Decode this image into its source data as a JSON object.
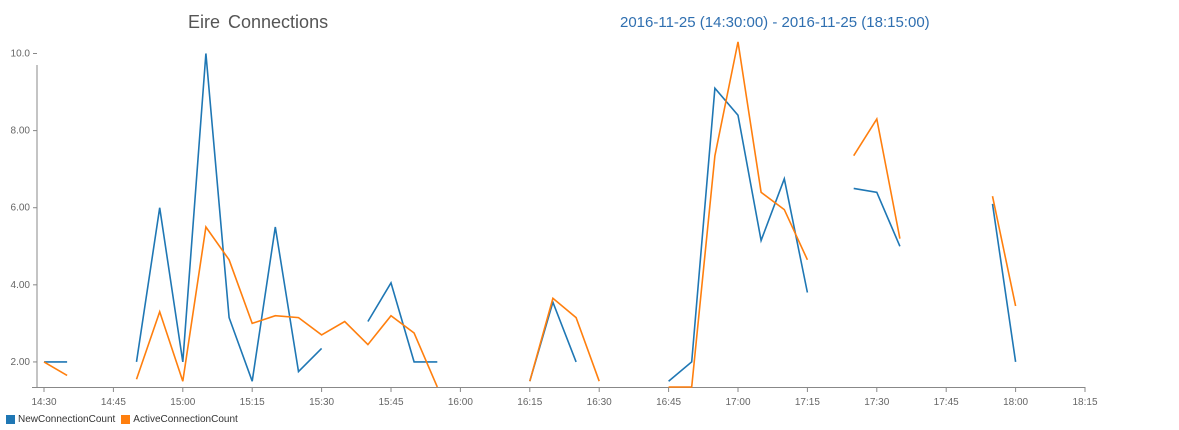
{
  "header": {
    "title": "Eire  Connections",
    "range": "2016-11-25 (14:30:00) - 2016-11-25 (18:15:00)"
  },
  "chart_data": {
    "type": "line",
    "title": "Eire  Connections",
    "subtitle": "2016-11-25 (14:30:00) - 2016-11-25 (18:15:00)",
    "x_ticks": [
      "14:30",
      "14:45",
      "15:00",
      "15:15",
      "15:30",
      "15:45",
      "16:00",
      "16:15",
      "16:30",
      "16:45",
      "17:00",
      "17:15",
      "17:30",
      "17:45",
      "18:00",
      "18:15"
    ],
    "y_ticks": [
      "2.00",
      "4.00",
      "6.00",
      "8.00",
      "10.0"
    ],
    "ylim": [
      1.35,
      10.35
    ],
    "xlim": [
      "14:30",
      "18:15"
    ],
    "legend_position": "bottom-left",
    "grid": false,
    "series": [
      {
        "name": "NewConnectionCount",
        "color": "#1f77b4",
        "points": [
          [
            "14:30",
            2.0
          ],
          [
            "14:35",
            2.0
          ],
          [
            "14:50",
            2.0
          ],
          [
            "14:55",
            6.0
          ],
          [
            "15:00",
            2.0
          ],
          [
            "15:05",
            10.0
          ],
          [
            "15:10",
            3.15
          ],
          [
            "15:15",
            1.5
          ],
          [
            "15:20",
            5.5
          ],
          [
            "15:25",
            1.75
          ],
          [
            "15:30",
            2.35
          ],
          [
            "15:40",
            3.05
          ],
          [
            "15:45",
            4.05
          ],
          [
            "15:50",
            2.0
          ],
          [
            "15:55",
            2.0
          ],
          [
            "16:15",
            1.5
          ],
          [
            "16:20",
            3.55
          ],
          [
            "16:25",
            2.0
          ],
          [
            "16:45",
            1.5
          ],
          [
            "16:50",
            2.0
          ],
          [
            "16:55",
            9.1
          ],
          [
            "17:00",
            8.4
          ],
          [
            "17:05",
            5.15
          ],
          [
            "17:10",
            6.75
          ],
          [
            "17:15",
            3.8
          ],
          [
            "17:25",
            6.5
          ],
          [
            "17:30",
            6.4
          ],
          [
            "17:35",
            5.0
          ],
          [
            "17:55",
            6.1
          ],
          [
            "18:00",
            2.0
          ]
        ],
        "segments": [
          [
            0,
            2
          ],
          [
            2,
            11
          ],
          [
            11,
            15
          ],
          [
            15,
            18
          ],
          [
            18,
            25
          ],
          [
            25,
            28
          ],
          [
            28,
            30
          ]
        ]
      },
      {
        "name": "ActiveConnectionCount",
        "color": "#ff7f0e",
        "points": [
          [
            "14:30",
            2.0
          ],
          [
            "14:35",
            1.65
          ],
          [
            "14:50",
            1.55
          ],
          [
            "14:55",
            3.3
          ],
          [
            "15:00",
            1.5
          ],
          [
            "15:05",
            5.5
          ],
          [
            "15:10",
            4.65
          ],
          [
            "15:15",
            3.0
          ],
          [
            "15:20",
            3.2
          ],
          [
            "15:25",
            3.15
          ],
          [
            "15:30",
            2.7
          ],
          [
            "15:35",
            3.05
          ],
          [
            "15:40",
            2.45
          ],
          [
            "15:45",
            3.2
          ],
          [
            "15:50",
            2.75
          ],
          [
            "15:55",
            1.35
          ],
          [
            "16:15",
            1.5
          ],
          [
            "16:20",
            3.65
          ],
          [
            "16:25",
            3.15
          ],
          [
            "16:30",
            1.5
          ],
          [
            "16:45",
            1.35
          ],
          [
            "16:50",
            1.35
          ],
          [
            "16:55",
            7.35
          ],
          [
            "17:00",
            10.3
          ],
          [
            "17:05",
            6.4
          ],
          [
            "17:10",
            5.95
          ],
          [
            "17:15",
            4.65
          ],
          [
            "17:25",
            7.35
          ],
          [
            "17:30",
            8.3
          ],
          [
            "17:35",
            5.2
          ],
          [
            "17:55",
            6.3
          ],
          [
            "18:00",
            3.45
          ]
        ],
        "segments": [
          [
            0,
            2
          ],
          [
            2,
            16
          ],
          [
            16,
            20
          ],
          [
            20,
            27
          ],
          [
            27,
            30
          ],
          [
            30,
            32
          ]
        ]
      }
    ]
  },
  "legend": {
    "items": [
      {
        "label": "NewConnectionCount",
        "color": "#1f77b4"
      },
      {
        "label": "ActiveConnectionCount",
        "color": "#ff7f0e"
      }
    ]
  }
}
